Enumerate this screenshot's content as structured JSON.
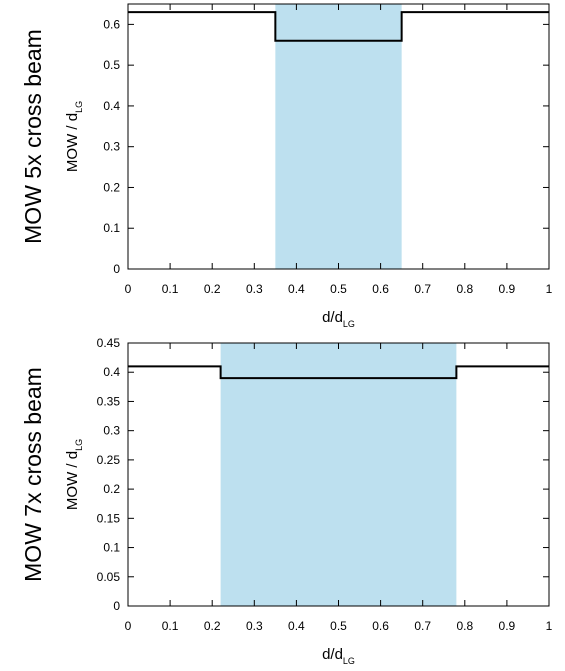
{
  "chart_data": [
    {
      "type": "line",
      "side_title": "MOW 5x cross beam",
      "xlabel": {
        "main": "d/d",
        "sub": "LG"
      },
      "ylabel": {
        "main": "MOW / d",
        "sub": "LG"
      },
      "xlim": [
        0,
        1
      ],
      "ylim": [
        0,
        0.65
      ],
      "x_ticks": [
        0,
        0.1,
        0.2,
        0.3,
        0.4,
        0.5,
        0.6,
        0.7,
        0.8,
        0.9,
        1
      ],
      "x_tick_labels": [
        "0",
        "0.1",
        "0.2",
        "0.3",
        "0.4",
        "0.5",
        "0.6",
        "0.7",
        "0.8",
        "0.9",
        "1"
      ],
      "y_ticks": [
        0,
        0.1,
        0.2,
        0.3,
        0.4,
        0.5,
        0.6
      ],
      "y_tick_labels": [
        "0",
        "0.1",
        "0.2",
        "0.3",
        "0.4",
        "0.5",
        "0.6"
      ],
      "shaded_region": {
        "x": [
          0.35,
          0.65
        ],
        "color": "#bde0ef"
      },
      "series": [
        {
          "x": [
            0,
            0.35,
            0.35,
            0.65,
            0.65,
            1
          ],
          "y": [
            0.63,
            0.63,
            0.56,
            0.56,
            0.63,
            0.63
          ],
          "color": "#000000"
        }
      ],
      "grid": false,
      "legend": "none"
    },
    {
      "type": "line",
      "side_title": "MOW 7x cross beam",
      "xlabel": {
        "main": "d/d",
        "sub": "LG"
      },
      "ylabel": {
        "main": "MOW / d",
        "sub": "LG"
      },
      "xlim": [
        0,
        1
      ],
      "ylim": [
        0,
        0.45
      ],
      "x_ticks": [
        0,
        0.1,
        0.2,
        0.3,
        0.4,
        0.5,
        0.6,
        0.7,
        0.8,
        0.9,
        1
      ],
      "x_tick_labels": [
        "0",
        "0.1",
        "0.2",
        "0.3",
        "0.4",
        "0.5",
        "0.6",
        "0.7",
        "0.8",
        "0.9",
        "1"
      ],
      "y_ticks": [
        0,
        0.05,
        0.1,
        0.15,
        0.2,
        0.25,
        0.3,
        0.35,
        0.4,
        0.45
      ],
      "y_tick_labels": [
        "0",
        "0.05",
        "0.1",
        "0.15",
        "0.2",
        "0.25",
        "0.3",
        "0.35",
        "0.4",
        "0.45"
      ],
      "shaded_region": {
        "x": [
          0.22,
          0.78
        ],
        "color": "#bde0ef"
      },
      "series": [
        {
          "x": [
            0,
            0.22,
            0.22,
            0.78,
            0.78,
            1
          ],
          "y": [
            0.41,
            0.41,
            0.39,
            0.39,
            0.41,
            0.41
          ],
          "color": "#000000"
        }
      ],
      "grid": false,
      "legend": "none"
    }
  ]
}
